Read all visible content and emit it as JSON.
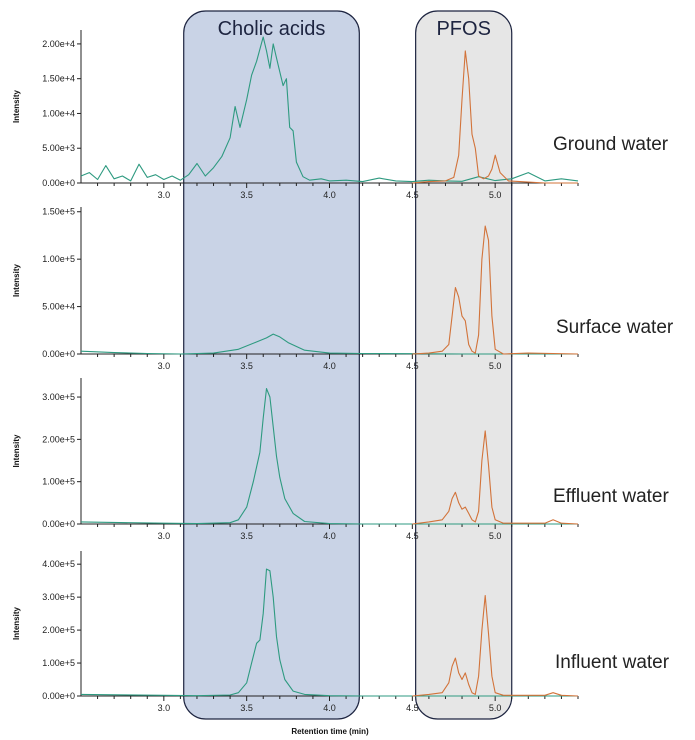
{
  "chart_data": {
    "type": "line",
    "xlabel": "Retention time (min)",
    "ylabel": "Intensity",
    "x_ticks": [
      "3.0",
      "3.5",
      "4.0",
      "4.5",
      "5.0"
    ],
    "xlim": [
      2.5,
      5.5
    ],
    "highlight_regions": [
      {
        "label": "Cholic acids",
        "x_range": [
          3.12,
          4.18
        ],
        "color": "#c9d3e6"
      },
      {
        "label": "PFOS",
        "x_range": [
          4.52,
          5.1
        ],
        "color": "#e6e6e6"
      }
    ],
    "series_colors": {
      "cholic_acids": "#2e9a80",
      "pfos": "#d2733a"
    },
    "panels": [
      {
        "sample": "Ground water",
        "ylim": [
          0,
          22000
        ],
        "y_ticks": [
          0,
          5000,
          10000,
          15000,
          20000
        ],
        "y_tick_labels": [
          "0.00e+0",
          "5.00e+3",
          "1.00e+4",
          "1.50e+4",
          "2.00e+4"
        ],
        "series": [
          {
            "x": [
              2.5,
              2.55,
              2.6,
              2.65,
              2.7,
              2.75,
              2.8,
              2.85,
              2.9,
              2.95,
              3.0,
              3.05,
              3.1,
              3.15,
              3.2,
              3.25,
              3.3,
              3.35,
              3.4,
              3.43,
              3.46,
              3.5,
              3.53,
              3.56,
              3.6,
              3.62,
              3.64,
              3.66,
              3.69,
              3.72,
              3.74,
              3.76,
              3.78,
              3.8,
              3.84,
              3.88,
              3.95,
              4.0,
              4.1,
              4.2,
              4.3,
              4.4,
              4.5,
              4.6,
              4.7,
              4.8,
              4.9,
              5.0,
              5.1,
              5.2,
              5.3,
              5.4,
              5.5
            ],
            "y": [
              1000,
              1500,
              500,
              2500,
              600,
              1000,
              300,
              2700,
              800,
              1200,
              500,
              1000,
              400,
              1200,
              2800,
              1000,
              2200,
              3800,
              6500,
              11000,
              8000,
              12000,
              15500,
              17500,
              21000,
              19000,
              16500,
              20000,
              17000,
              14000,
              15000,
              8000,
              7500,
              3000,
              900,
              400,
              600,
              300,
              400,
              200,
              700,
              300,
              200,
              400,
              300,
              250,
              900,
              350,
              600,
              1500,
              300,
              600,
              300
            ]
          },
          {
            "x": [
              4.5,
              4.6,
              4.7,
              4.75,
              4.78,
              4.8,
              4.82,
              4.84,
              4.86,
              4.88,
              4.9,
              4.93,
              4.96,
              4.98,
              5.0,
              5.03,
              5.08,
              5.15,
              5.3,
              5.5
            ],
            "y": [
              0,
              200,
              300,
              800,
              4000,
              12000,
              19000,
              15000,
              7000,
              5000,
              1000,
              600,
              1000,
              2000,
              4000,
              1500,
              300,
              200,
              0,
              0
            ]
          }
        ]
      },
      {
        "sample": "Surface water",
        "ylim": [
          0,
          155000
        ],
        "y_ticks": [
          0,
          50000,
          100000,
          150000
        ],
        "y_tick_labels": [
          "0.00e+0",
          "5.00e+4",
          "1.00e+5",
          "1.50e+5"
        ],
        "series": [
          {
            "x": [
              2.5,
              2.7,
              2.9,
              3.1,
              3.3,
              3.45,
              3.55,
              3.62,
              3.66,
              3.7,
              3.75,
              3.85,
              4.0,
              4.2,
              4.5,
              4.8,
              5.0,
              5.2,
              5.5
            ],
            "y": [
              3000,
              1500,
              500,
              0,
              1000,
              5000,
              12000,
              17000,
              21000,
              18000,
              12000,
              4000,
              1000,
              500,
              300,
              0,
              0,
              0,
              0
            ]
          },
          {
            "x": [
              4.5,
              4.6,
              4.68,
              4.72,
              4.74,
              4.76,
              4.78,
              4.8,
              4.82,
              4.84,
              4.86,
              4.88,
              4.9,
              4.92,
              4.94,
              4.96,
              4.98,
              5.0,
              5.05,
              5.2,
              5.5
            ],
            "y": [
              0,
              1000,
              3000,
              10000,
              40000,
              70000,
              60000,
              40000,
              35000,
              10000,
              3000,
              1000,
              20000,
              100000,
              135000,
              120000,
              40000,
              5000,
              0,
              1000,
              0
            ]
          }
        ]
      },
      {
        "sample": "Effluent water",
        "ylim": [
          0,
          345000
        ],
        "y_ticks": [
          0,
          100000,
          200000,
          300000
        ],
        "y_tick_labels": [
          "0.00e+0",
          "1.00e+5",
          "2.00e+5",
          "3.00e+5"
        ],
        "series": [
          {
            "x": [
              2.5,
              3.0,
              3.2,
              3.4,
              3.45,
              3.5,
              3.54,
              3.58,
              3.6,
              3.62,
              3.64,
              3.66,
              3.68,
              3.7,
              3.73,
              3.78,
              3.85,
              4.0,
              4.2,
              4.5,
              5.0,
              5.5
            ],
            "y": [
              5000,
              2000,
              1000,
              3000,
              10000,
              40000,
              100000,
              170000,
              250000,
              320000,
              300000,
              230000,
              160000,
              110000,
              60000,
              25000,
              6000,
              1000,
              0,
              0,
              0,
              0
            ]
          },
          {
            "x": [
              4.5,
              4.6,
              4.68,
              4.72,
              4.74,
              4.76,
              4.78,
              4.8,
              4.82,
              4.84,
              4.86,
              4.88,
              4.9,
              4.92,
              4.94,
              4.96,
              4.98,
              5.0,
              5.05,
              5.3,
              5.35,
              5.4,
              5.5
            ],
            "y": [
              0,
              5000,
              10000,
              30000,
              60000,
              75000,
              50000,
              35000,
              40000,
              25000,
              10000,
              5000,
              30000,
              150000,
              220000,
              140000,
              40000,
              10000,
              2000,
              2000,
              10000,
              2000,
              0
            ]
          }
        ]
      },
      {
        "sample": "Influent water",
        "ylim": [
          0,
          440000
        ],
        "y_ticks": [
          0,
          100000,
          200000,
          300000,
          400000
        ],
        "y_tick_labels": [
          "0.00e+0",
          "1.00e+5",
          "2.00e+5",
          "3.00e+5",
          "4.00e+5"
        ],
        "series": [
          {
            "x": [
              2.5,
              3.0,
              3.2,
              3.4,
              3.45,
              3.5,
              3.53,
              3.56,
              3.58,
              3.6,
              3.62,
              3.64,
              3.66,
              3.68,
              3.7,
              3.73,
              3.78,
              3.85,
              4.0,
              4.2,
              4.5,
              5.0,
              5.5
            ],
            "y": [
              5000,
              2000,
              1000,
              3000,
              10000,
              40000,
              100000,
              160000,
              170000,
              250000,
              385000,
              380000,
              300000,
              180000,
              110000,
              50000,
              15000,
              5000,
              1000,
              0,
              0,
              0,
              0
            ]
          },
          {
            "x": [
              4.5,
              4.6,
              4.68,
              4.72,
              4.74,
              4.76,
              4.78,
              4.8,
              4.82,
              4.84,
              4.86,
              4.88,
              4.9,
              4.92,
              4.94,
              4.96,
              4.98,
              5.0,
              5.05,
              5.3,
              5.35,
              5.4,
              5.5
            ],
            "y": [
              0,
              5000,
              10000,
              40000,
              90000,
              115000,
              70000,
              50000,
              70000,
              35000,
              10000,
              5000,
              60000,
              200000,
              305000,
              190000,
              60000,
              10000,
              2000,
              2000,
              10000,
              2000,
              0
            ]
          }
        ]
      }
    ]
  }
}
